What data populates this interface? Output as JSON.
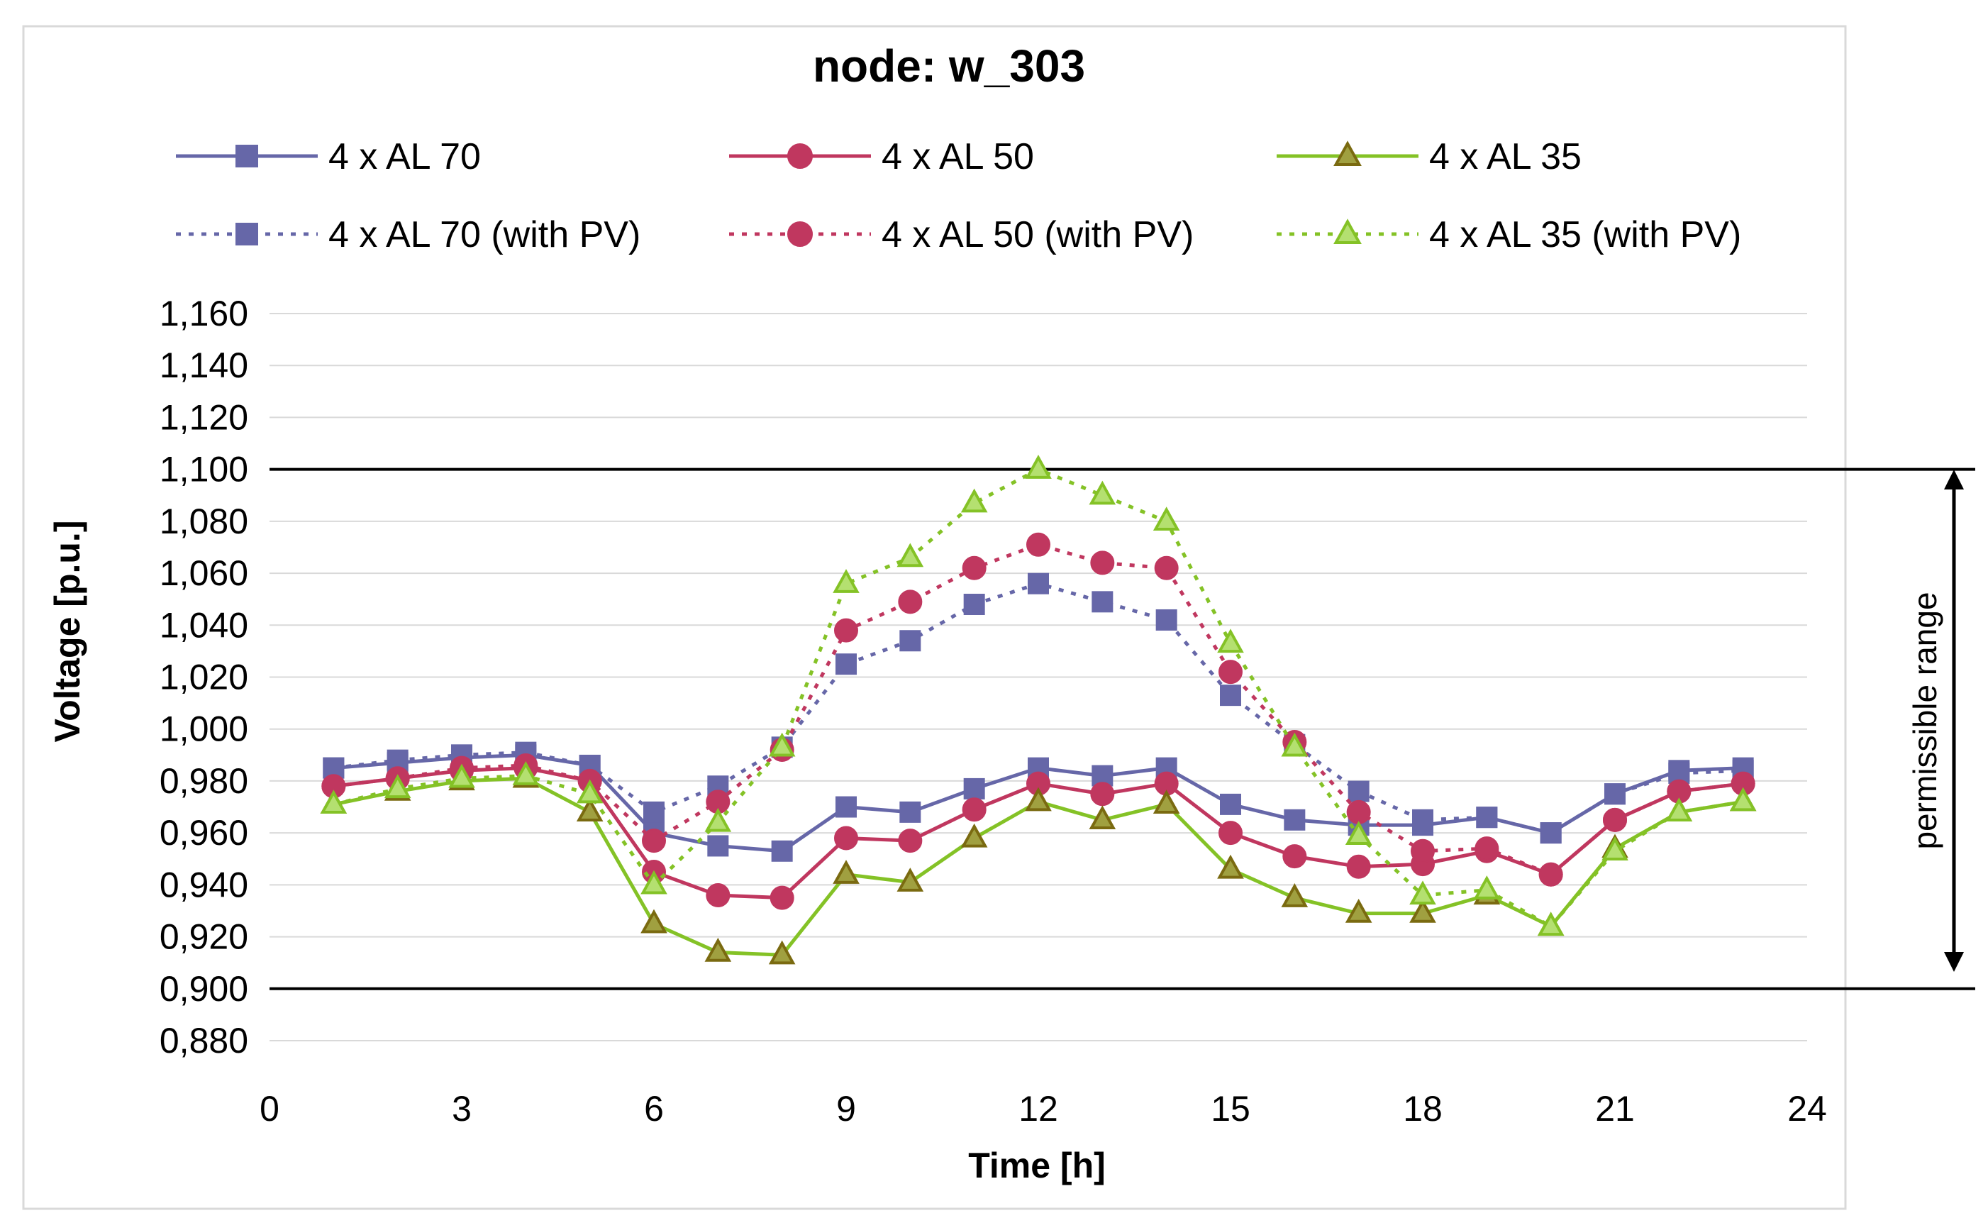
{
  "chart_data": {
    "type": "line",
    "title": "node:  w_303",
    "xlabel": "Time [h]",
    "ylabel": "Voltage [p.u.]",
    "xlim": [
      0,
      24
    ],
    "ylim": [
      0.88,
      1.16
    ],
    "x_ticks": [
      "0",
      "3",
      "6",
      "9",
      "12",
      "15",
      "18",
      "21",
      "24"
    ],
    "y_ticks": [
      "1,160",
      "1,140",
      "1,120",
      "1,100",
      "1,080",
      "1,060",
      "1,040",
      "1,020",
      "1,000",
      "0,980",
      "0,960",
      "0,940",
      "0,920",
      "0,900",
      "0,880"
    ],
    "grid": true,
    "x": [
      1,
      2,
      3,
      4,
      5,
      6,
      7,
      8,
      9,
      10,
      11,
      12,
      13,
      14,
      15,
      16,
      17,
      18,
      19,
      20,
      21,
      22,
      23
    ],
    "limits": [
      {
        "name": "upper-limit",
        "value": 1.1
      },
      {
        "name": "lower-limit",
        "value": 0.9
      }
    ],
    "range_annotation": "permissible range",
    "series": [
      {
        "name": "4 x AL 70",
        "color": "#6667a8",
        "marker": "square",
        "dashed": false,
        "values": [
          0.985,
          0.987,
          0.989,
          0.99,
          0.986,
          0.96,
          0.955,
          0.953,
          0.97,
          0.968,
          0.977,
          0.985,
          0.982,
          0.985,
          0.971,
          0.965,
          0.963,
          0.963,
          0.966,
          0.96,
          0.975,
          0.984,
          0.985
        ]
      },
      {
        "name": "4 x AL 50",
        "color": "#c0375f",
        "marker": "circle",
        "dashed": false,
        "values": [
          0.978,
          0.981,
          0.984,
          0.985,
          0.98,
          0.945,
          0.936,
          0.935,
          0.958,
          0.957,
          0.969,
          0.979,
          0.975,
          0.979,
          0.96,
          0.951,
          0.947,
          0.948,
          0.953,
          0.944,
          0.965,
          0.976,
          0.979
        ]
      },
      {
        "name": "4 x AL 35",
        "color": "#84c226",
        "marker": "triangle",
        "marker_fill": "#a0a040",
        "marker_stroke": "#7a6a10",
        "dashed": false,
        "values": [
          0.971,
          0.976,
          0.98,
          0.981,
          0.968,
          0.925,
          0.914,
          0.913,
          0.944,
          0.941,
          0.958,
          0.972,
          0.965,
          0.971,
          0.946,
          0.935,
          0.929,
          0.929,
          0.936,
          0.924,
          0.954,
          0.968,
          0.972
        ]
      },
      {
        "name": "4 x AL 70 (with PV)",
        "color": "#6667a8",
        "marker": "square",
        "dashed": true,
        "values": [
          0.985,
          0.988,
          0.99,
          0.991,
          0.986,
          0.968,
          0.978,
          0.993,
          1.025,
          1.034,
          1.048,
          1.056,
          1.049,
          1.042,
          1.013,
          0.994,
          0.976,
          0.965,
          0.966,
          0.96,
          0.975,
          0.983,
          0.984
        ]
      },
      {
        "name": "4 x AL 50 (with PV)",
        "color": "#c0375f",
        "marker": "circle",
        "dashed": true,
        "values": [
          0.978,
          0.981,
          0.985,
          0.986,
          0.98,
          0.957,
          0.972,
          0.992,
          1.038,
          1.049,
          1.062,
          1.071,
          1.064,
          1.062,
          1.022,
          0.995,
          0.968,
          0.953,
          0.954,
          0.944,
          0.965,
          0.976,
          0.979
        ]
      },
      {
        "name": "4 x AL 35 (with PV)",
        "color": "#84c226",
        "marker": "triangle",
        "marker_fill": "#b4e070",
        "marker_stroke": "#84c226",
        "dashed": true,
        "values": [
          0.971,
          0.977,
          0.981,
          0.982,
          0.975,
          0.94,
          0.964,
          0.993,
          1.056,
          1.066,
          1.087,
          1.1,
          1.09,
          1.08,
          1.033,
          0.993,
          0.959,
          0.936,
          0.938,
          0.924,
          0.953,
          0.968,
          0.972
        ]
      }
    ]
  }
}
